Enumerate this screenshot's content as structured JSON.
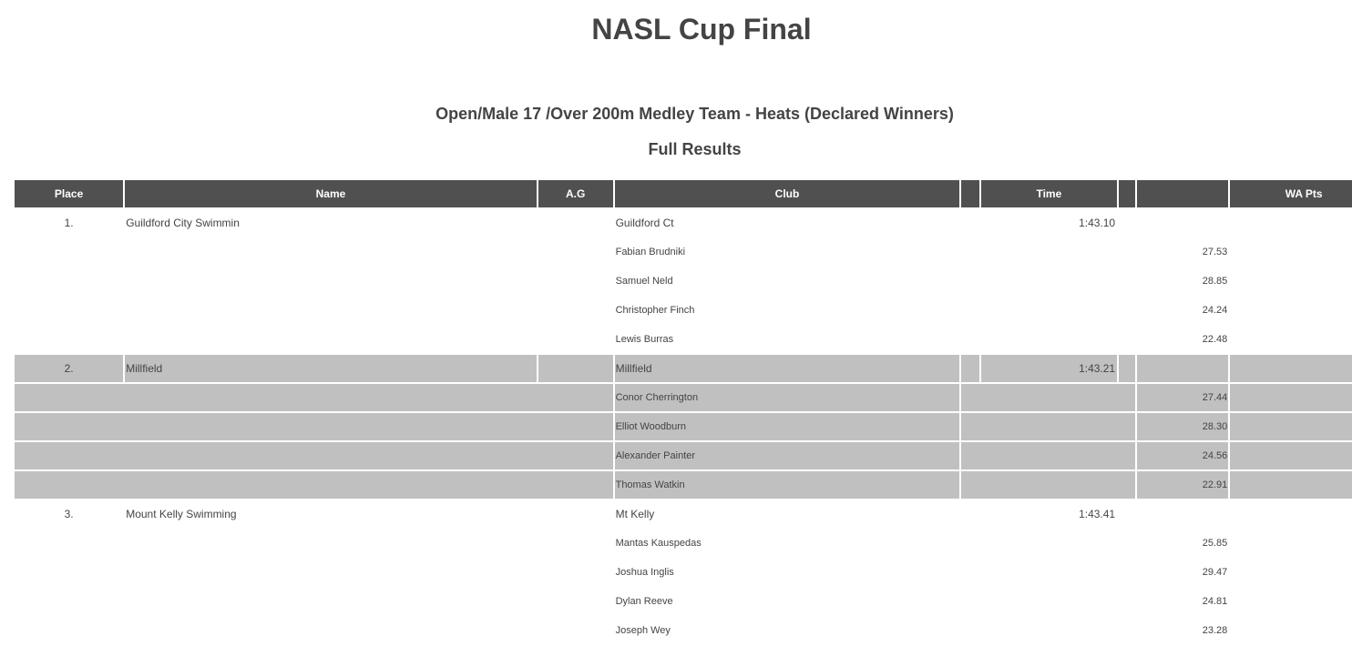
{
  "title": "NASL Cup Final",
  "event": "Open/Male 17 /Over 200m Medley Team - Heats (Declared Winners)",
  "subtitle": "Full Results",
  "columns": {
    "place": "Place",
    "name": "Name",
    "ag": "A.G",
    "club": "Club",
    "time": "Time",
    "wa_pts": "WA Pts"
  },
  "results": [
    {
      "place": "1.",
      "name": "Guildford City Swimmin",
      "club": "Guildford Ct",
      "time": "1:43.10",
      "highlight": false,
      "members": [
        {
          "name": "Fabian Brudniki",
          "split": "27.53"
        },
        {
          "name": "Samuel Neld",
          "split": "28.85"
        },
        {
          "name": "Christopher Finch",
          "split": "24.24"
        },
        {
          "name": "Lewis Burras",
          "split": "22.48"
        }
      ]
    },
    {
      "place": "2.",
      "name": "Millfield",
      "club": "Millfield",
      "time": "1:43.21",
      "highlight": true,
      "members": [
        {
          "name": "Conor Cherrington",
          "split": "27.44"
        },
        {
          "name": "Elliot Woodburn",
          "split": "28.30"
        },
        {
          "name": "Alexander Painter",
          "split": "24.56"
        },
        {
          "name": "Thomas Watkin",
          "split": "22.91"
        }
      ]
    },
    {
      "place": "3.",
      "name": "Mount Kelly Swimming",
      "club": "Mt Kelly",
      "time": "1:43.41",
      "highlight": false,
      "members": [
        {
          "name": "Mantas Kauspedas",
          "split": "25.85"
        },
        {
          "name": "Joshua Inglis",
          "split": "29.47"
        },
        {
          "name": "Dylan Reeve",
          "split": "24.81"
        },
        {
          "name": "Joseph Wey",
          "split": "23.28"
        }
      ]
    }
  ],
  "colors": {
    "header_bg": "#505050",
    "highlight_bg": "#c0c0c0",
    "text": "#444444"
  }
}
